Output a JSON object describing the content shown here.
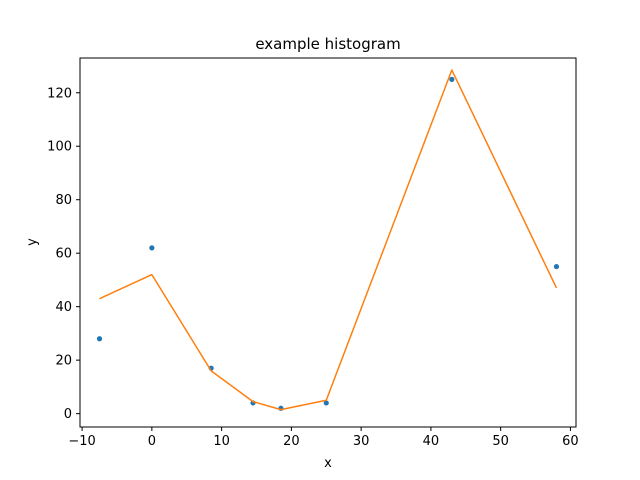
{
  "chart_data": {
    "type": "line",
    "title": "example histogram",
    "xlabel": "x",
    "ylabel": "y",
    "xlim": [
      -10.3,
      60.8
    ],
    "ylim": [
      -5,
      133
    ],
    "xticks": [
      -10,
      0,
      10,
      20,
      30,
      40,
      50,
      60
    ],
    "yticks": [
      0,
      20,
      40,
      60,
      80,
      100,
      120
    ],
    "grid": false,
    "series": [
      {
        "kind": "scatter",
        "color": "#1f77b4",
        "x": [
          -7.5,
          0,
          8.5,
          14.5,
          18.5,
          25,
          43,
          58
        ],
        "y": [
          28,
          62,
          17,
          4,
          2,
          4,
          125,
          55
        ]
      },
      {
        "kind": "line",
        "color": "#ff7f0e",
        "x": [
          -7.5,
          0,
          8.5,
          14.5,
          18.5,
          25,
          43,
          58
        ],
        "y": [
          43,
          52,
          16,
          4.5,
          1.5,
          5,
          128.5,
          47
        ]
      }
    ]
  }
}
